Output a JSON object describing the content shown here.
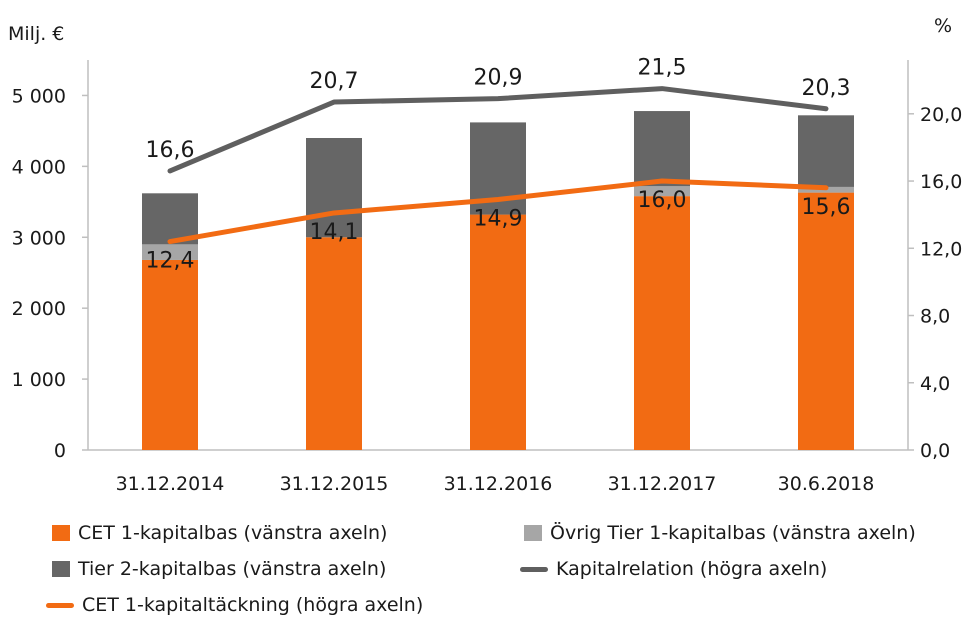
{
  "chart_data": {
    "type": "bar+line",
    "stacked": true,
    "categories": [
      "31.12.2014",
      "31.12.2015",
      "31.12.2016",
      "31.12.2017",
      "30.6.2018"
    ],
    "left_axis": {
      "label": "Milj. €",
      "ylim": [
        0,
        5500
      ],
      "ticks": [
        0,
        1000,
        2000,
        3000,
        4000,
        5000
      ],
      "tick_labels": [
        "0",
        "1 000",
        "2 000",
        "3 000",
        "4 000",
        "5 000"
      ]
    },
    "right_axis": {
      "label": "%",
      "ylim": [
        0,
        23.2
      ],
      "ticks": [
        0,
        4,
        8,
        12,
        16,
        20
      ],
      "tick_labels": [
        "0,0",
        "4,0",
        "8,0",
        "12,0",
        "16,0",
        "20,0"
      ]
    },
    "bar_series": [
      {
        "name": "CET 1-kapitalbas (vänstra axeln)",
        "color": "#f26b13",
        "values": [
          2680,
          3000,
          3320,
          3580,
          3630
        ]
      },
      {
        "name": "Övrig Tier 1-kapitalbas (vänstra axeln)",
        "color": "#a6a6a6",
        "values": [
          220,
          0,
          0,
          140,
          80
        ]
      },
      {
        "name": "Tier 2-kapitalbas (vänstra axeln)",
        "color": "#666666",
        "values": [
          720,
          1400,
          1300,
          1060,
          1010
        ]
      }
    ],
    "line_series": [
      {
        "name": "Kapitalrelation (högra axeln)",
        "color": "#5f5f5f",
        "values": [
          16.6,
          20.7,
          20.9,
          21.5,
          20.3
        ],
        "labels": [
          "16,6",
          "20,7",
          "20,9",
          "21,5",
          "20,3"
        ]
      },
      {
        "name": "CET 1-kapitaltäckning (högra axeln)",
        "color": "#f26b13",
        "values": [
          12.4,
          14.1,
          14.9,
          16.0,
          15.6
        ],
        "labels": [
          "12,4",
          "14,1",
          "14,9",
          "16,0",
          "15,6"
        ]
      }
    ],
    "legend_position": "bottom",
    "grid": false
  }
}
